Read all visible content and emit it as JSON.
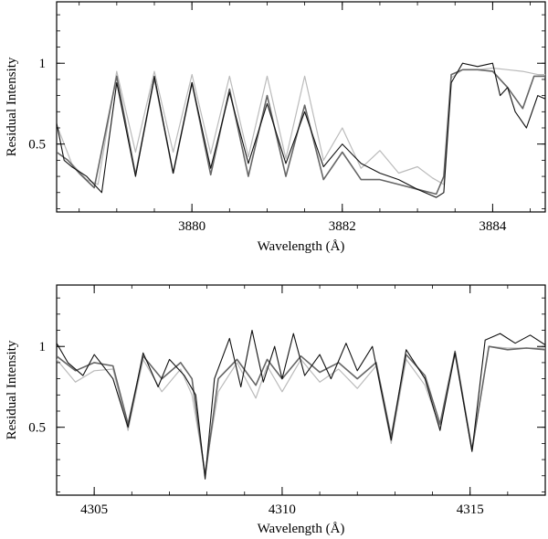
{
  "chart_data": [
    {
      "type": "line",
      "xlabel": "Wavelength (Å)",
      "ylabel": "Residual Intensity",
      "xlim": [
        3878.2,
        3884.7
      ],
      "ylim": [
        0.08,
        1.38
      ],
      "xticks": [
        3880,
        3882,
        3884
      ],
      "xtick_labels": [
        "3880",
        "3882",
        "3884"
      ],
      "yticks": [
        0.5,
        1
      ],
      "ytick_labels": [
        "0.5",
        "1"
      ],
      "grid": false,
      "series": [
        {
          "color": "#bbbbbb",
          "width": 1.2,
          "x": [
            3878.2,
            3878.4,
            3878.6,
            3878.75,
            3879.0,
            3879.25,
            3879.5,
            3879.75,
            3880.0,
            3880.25,
            3880.5,
            3880.75,
            3881.0,
            3881.25,
            3881.5,
            3881.75,
            3882.0,
            3882.25,
            3882.5,
            3882.75,
            3883.0,
            3883.2,
            3883.35,
            3883.4,
            3883.45,
            3883.6,
            3883.8,
            3884.0,
            3884.2,
            3884.4,
            3884.6,
            3884.7
          ],
          "y": [
            0.62,
            0.38,
            0.28,
            0.25,
            0.95,
            0.45,
            0.95,
            0.45,
            0.93,
            0.44,
            0.92,
            0.42,
            0.92,
            0.41,
            0.92,
            0.4,
            0.6,
            0.35,
            0.46,
            0.32,
            0.36,
            0.29,
            0.25,
            0.6,
            0.91,
            0.96,
            0.96,
            0.97,
            0.96,
            0.95,
            0.93,
            0.93
          ]
        },
        {
          "color": "#666666",
          "width": 1.6,
          "x": [
            3878.2,
            3878.35,
            3878.5,
            3878.7,
            3879.0,
            3879.25,
            3879.5,
            3879.75,
            3880.0,
            3880.25,
            3880.5,
            3880.75,
            3881.0,
            3881.25,
            3881.5,
            3881.75,
            3882.0,
            3882.25,
            3882.5,
            3882.75,
            3883.0,
            3883.25,
            3883.35,
            3883.45,
            3883.6,
            3883.8,
            3884.0,
            3884.2,
            3884.4,
            3884.55,
            3884.7
          ],
          "y": [
            0.45,
            0.4,
            0.32,
            0.23,
            0.92,
            0.31,
            0.91,
            0.32,
            0.88,
            0.31,
            0.84,
            0.3,
            0.8,
            0.3,
            0.74,
            0.28,
            0.45,
            0.28,
            0.28,
            0.25,
            0.22,
            0.19,
            0.3,
            0.93,
            0.96,
            0.96,
            0.95,
            0.85,
            0.72,
            0.92,
            0.92
          ]
        },
        {
          "color": "#111111",
          "width": 1.1,
          "x": [
            3878.2,
            3878.3,
            3878.4,
            3878.6,
            3878.8,
            3879.0,
            3879.25,
            3879.5,
            3879.75,
            3880.0,
            3880.25,
            3880.5,
            3880.75,
            3881.0,
            3881.25,
            3881.5,
            3881.75,
            3882.0,
            3882.25,
            3882.5,
            3882.75,
            3883.0,
            3883.25,
            3883.35,
            3883.45,
            3883.6,
            3883.8,
            3884.0,
            3884.1,
            3884.2,
            3884.3,
            3884.45,
            3884.6,
            3884.7
          ],
          "y": [
            0.63,
            0.4,
            0.36,
            0.3,
            0.2,
            0.88,
            0.3,
            0.92,
            0.32,
            0.88,
            0.35,
            0.82,
            0.38,
            0.75,
            0.38,
            0.7,
            0.36,
            0.5,
            0.38,
            0.32,
            0.28,
            0.22,
            0.17,
            0.2,
            0.88,
            1.0,
            0.98,
            1.0,
            0.8,
            0.85,
            0.7,
            0.6,
            0.8,
            0.78
          ]
        }
      ]
    },
    {
      "type": "line",
      "xlabel": "Wavelength (Å)",
      "ylabel": "Residual Intensity",
      "xlim": [
        4304.0,
        4317.0
      ],
      "ylim": [
        0.08,
        1.38
      ],
      "xticks": [
        4305,
        4310,
        4315
      ],
      "xtick_labels": [
        "4305",
        "4310",
        "4315"
      ],
      "yticks": [
        0.5,
        1
      ],
      "ytick_labels": [
        "0.5",
        "1"
      ],
      "grid": false,
      "series": [
        {
          "color": "#bbbbbb",
          "width": 1.2,
          "x": [
            4304.0,
            4304.5,
            4305.0,
            4305.5,
            4305.9,
            4306.3,
            4306.8,
            4307.3,
            4307.6,
            4307.95,
            4308.3,
            4308.8,
            4309.3,
            4309.6,
            4310.0,
            4310.5,
            4311.0,
            4311.5,
            4312.0,
            4312.5,
            4312.9,
            4313.3,
            4313.8,
            4314.2,
            4314.6,
            4315.05,
            4315.5,
            4316.0,
            4316.5,
            4317.0
          ],
          "y": [
            0.92,
            0.78,
            0.85,
            0.86,
            0.48,
            0.92,
            0.72,
            0.86,
            0.7,
            0.22,
            0.72,
            0.9,
            0.68,
            0.88,
            0.72,
            0.92,
            0.78,
            0.86,
            0.74,
            0.88,
            0.4,
            0.92,
            0.76,
            0.5,
            0.95,
            0.35,
            1.0,
            0.99,
            0.99,
            0.99
          ]
        },
        {
          "color": "#666666",
          "width": 1.6,
          "x": [
            4304.0,
            4304.5,
            4305.0,
            4305.5,
            4305.9,
            4306.3,
            4306.8,
            4307.3,
            4307.6,
            4307.95,
            4308.3,
            4308.8,
            4309.3,
            4309.6,
            4310.0,
            4310.5,
            4311.0,
            4311.5,
            4312.0,
            4312.5,
            4312.9,
            4313.3,
            4313.8,
            4314.2,
            4314.6,
            4315.05,
            4315.5,
            4316.0,
            4316.5,
            4317.0
          ],
          "y": [
            0.94,
            0.85,
            0.9,
            0.88,
            0.52,
            0.94,
            0.8,
            0.9,
            0.8,
            0.2,
            0.8,
            0.92,
            0.76,
            0.92,
            0.8,
            0.94,
            0.84,
            0.9,
            0.8,
            0.9,
            0.44,
            0.95,
            0.82,
            0.52,
            0.97,
            0.36,
            1.0,
            0.98,
            0.99,
            0.98
          ]
        },
        {
          "color": "#111111",
          "width": 1.1,
          "x": [
            4304.0,
            4304.3,
            4304.7,
            4305.0,
            4305.5,
            4305.9,
            4306.3,
            4306.7,
            4307.0,
            4307.4,
            4307.7,
            4307.95,
            4308.2,
            4308.6,
            4308.9,
            4309.2,
            4309.5,
            4309.8,
            4310.0,
            4310.3,
            4310.6,
            4311.0,
            4311.3,
            4311.7,
            4312.0,
            4312.4,
            4312.9,
            4313.3,
            4313.8,
            4314.2,
            4314.6,
            4315.05,
            4315.4,
            4315.8,
            4316.2,
            4316.6,
            4317.0
          ],
          "y": [
            1.02,
            0.9,
            0.82,
            0.95,
            0.8,
            0.5,
            0.96,
            0.75,
            0.92,
            0.82,
            0.7,
            0.18,
            0.8,
            1.05,
            0.75,
            1.1,
            0.78,
            1.0,
            0.8,
            1.08,
            0.82,
            0.95,
            0.8,
            1.02,
            0.85,
            1.0,
            0.42,
            0.98,
            0.8,
            0.48,
            0.96,
            0.35,
            1.04,
            1.08,
            1.02,
            1.07,
            1.01
          ]
        }
      ]
    }
  ]
}
